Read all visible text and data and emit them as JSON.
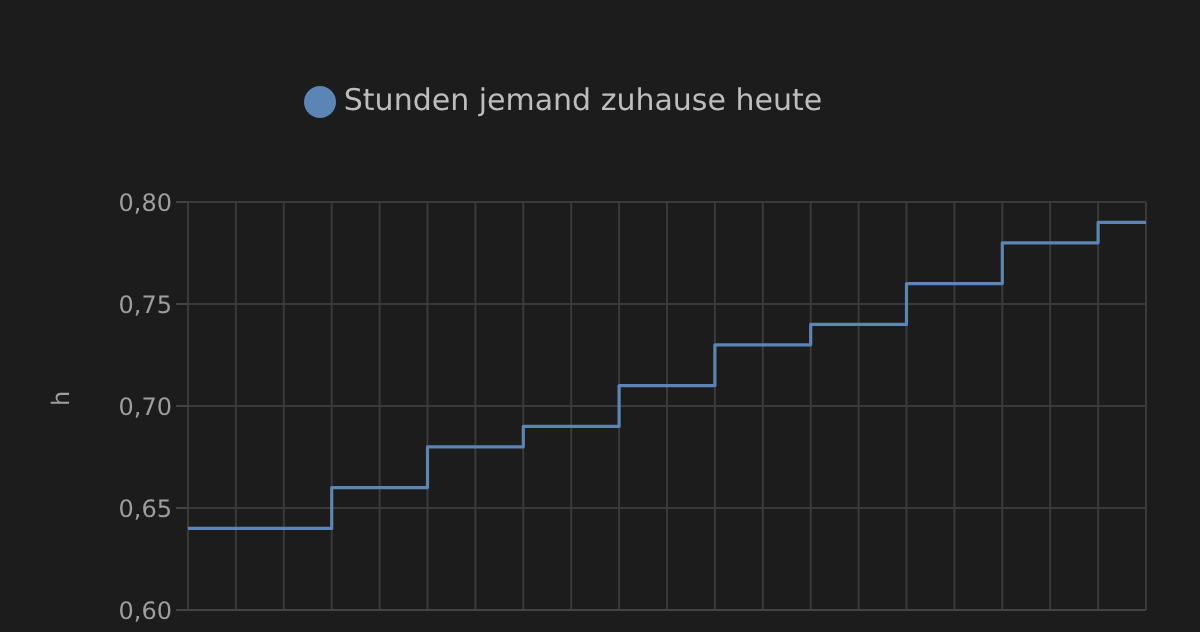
{
  "chart_data": {
    "type": "step",
    "categories": [
      null,
      null,
      null,
      null,
      null,
      null,
      null,
      null,
      null,
      null,
      null,
      null,
      null,
      null,
      null,
      null,
      null,
      null,
      null,
      null,
      null
    ],
    "series": [
      {
        "name": "Stunden jemand zuhause heute",
        "color": "#5b85b4",
        "values": [
          0.64,
          0.64,
          0.64,
          0.66,
          0.66,
          0.68,
          0.68,
          0.69,
          0.69,
          0.71,
          0.71,
          0.73,
          0.73,
          0.74,
          0.74,
          0.76,
          0.76,
          0.78,
          0.78,
          0.79,
          0.79
        ]
      }
    ],
    "ylabel": "h",
    "ylim": [
      0.6,
      0.8
    ],
    "yticks": [
      {
        "value": 0.6,
        "label": "0,60"
      },
      {
        "value": 0.65,
        "label": "0,65"
      },
      {
        "value": 0.7,
        "label": "0,70"
      },
      {
        "value": 0.75,
        "label": "0,75"
      },
      {
        "value": 0.8,
        "label": "0,80"
      }
    ],
    "grid": true,
    "legend": "top",
    "marker": "none",
    "line_style": "solid"
  }
}
